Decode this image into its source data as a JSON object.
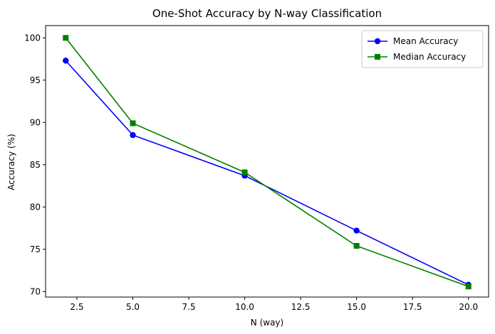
{
  "chart_data": {
    "type": "line",
    "title": "One-Shot Accuracy by N-way Classification",
    "xlabel": "N (way)",
    "ylabel": "Accuracy (%)",
    "x": [
      2,
      5,
      10,
      15,
      20
    ],
    "xlim": [
      1.1,
      20.9
    ],
    "ylim": [
      69.35,
      101.45
    ],
    "xticks": [
      2.5,
      5.0,
      7.5,
      10.0,
      12.5,
      15.0,
      17.5,
      20.0
    ],
    "xtick_labels": [
      "2.5",
      "5.0",
      "7.5",
      "10.0",
      "12.5",
      "15.0",
      "17.5",
      "20.0"
    ],
    "yticks": [
      70,
      75,
      80,
      85,
      90,
      95,
      100
    ],
    "ytick_labels": [
      "70",
      "75",
      "80",
      "85",
      "90",
      "95",
      "100"
    ],
    "grid": false,
    "legend_position": "top-right",
    "series": [
      {
        "name": "Mean Accuracy",
        "values": [
          97.3,
          88.5,
          83.7,
          77.2,
          70.8
        ],
        "color": "#0000ff",
        "marker": "circle"
      },
      {
        "name": "Median Accuracy",
        "values": [
          100.0,
          89.9,
          84.1,
          75.4,
          70.6
        ],
        "color": "#008000",
        "marker": "square"
      }
    ]
  }
}
